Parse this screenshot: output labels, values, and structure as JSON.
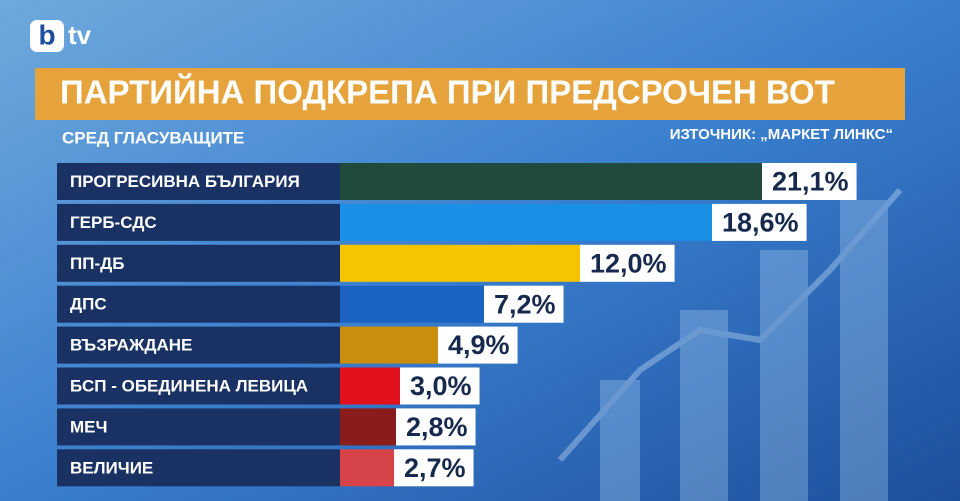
{
  "logo": {
    "b": "b",
    "tv": "tv"
  },
  "chart_data": {
    "type": "bar",
    "orientation": "horizontal",
    "title": "ПАРТИЙНА ПОДКРЕПА ПРИ ПРЕДСРОЧЕН ВОТ",
    "subtitle": "СРЕД ГЛАСУВАЩИТЕ",
    "source": "ИЗТОЧНИК: „МАРКЕТ ЛИНКС“",
    "categories": [
      "ПРОГРЕСИВНА БЪЛГАРИЯ",
      "ГЕРБ-СДС",
      "ПП-ДБ",
      "ДПС",
      "ВЪЗРАЖДАНЕ",
      "БСП - ОБЕДИНЕНА ЛЕВИЦА",
      "МЕЧ",
      "ВЕЛИЧИЕ"
    ],
    "values": [
      21.1,
      18.6,
      12.0,
      7.2,
      4.9,
      3.0,
      2.8,
      2.7
    ],
    "value_labels": [
      "21,1%",
      "18,6%",
      "12,0%",
      "7,2%",
      "4,9%",
      "3,0%",
      "2,8%",
      "2,7%"
    ],
    "colors": [
      "#1f4a3c",
      "#1a8fe6",
      "#f7c400",
      "#1a63c2",
      "#c98f0c",
      "#e2101c",
      "#8a1c1c",
      "#d6444a"
    ]
  }
}
